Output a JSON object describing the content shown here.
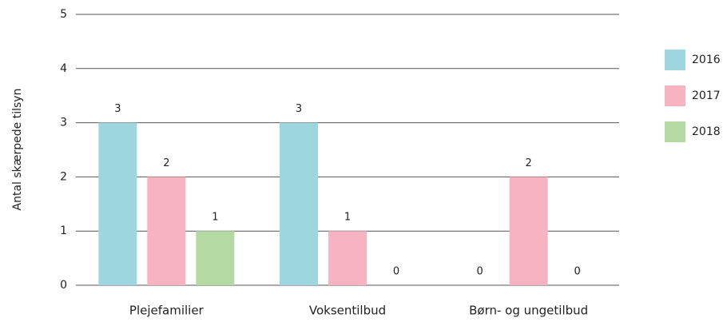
{
  "chart_data": {
    "type": "bar",
    "ylabel": "Antal skærpede tilsyn",
    "categories": [
      "Plejefamilier",
      "Voksentilbud",
      "Børn- og ungetilbud"
    ],
    "series": [
      {
        "name": "2016",
        "color": "#9dd6de",
        "values": [
          3,
          3,
          0
        ]
      },
      {
        "name": "2017",
        "color": "#f7b3c2",
        "values": [
          2,
          1,
          2
        ]
      },
      {
        "name": "2018",
        "color": "#b5d9a3",
        "values": [
          1,
          0,
          0
        ]
      }
    ],
    "ylim": [
      0,
      5
    ],
    "yticks": [
      0,
      1,
      2,
      3,
      4,
      5
    ],
    "grid": true,
    "legend": "right"
  }
}
